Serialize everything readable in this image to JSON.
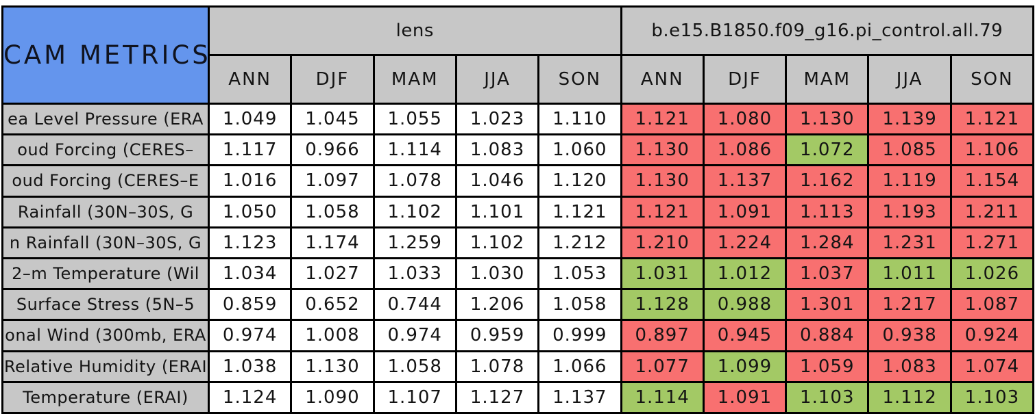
{
  "title": {
    "label": "CAM METRICS"
  },
  "groups": [
    {
      "label": "lens",
      "seasons": [
        "ANN",
        "DJF",
        "MAM",
        "JJA",
        "SON"
      ]
    },
    {
      "label": "b.e15.B1850.f09_g16.pi_control.all.79",
      "seasons": [
        "ANN",
        "DJF",
        "MAM",
        "JJA",
        "SON"
      ]
    }
  ],
  "colors": {
    "header_blue": "#6495ed",
    "header_gray": "#c7c7c7",
    "cell_white": "#ffffff",
    "cell_red": "#f87070",
    "cell_green": "#a3c965",
    "border": "#000000"
  },
  "rows": [
    {
      "label": "ea Level Pressure (ERA",
      "lens": [
        "1.049",
        "1.045",
        "1.055",
        "1.023",
        "1.110"
      ],
      "control": [
        {
          "v": "1.121",
          "flag": "red"
        },
        {
          "v": "1.080",
          "flag": "red"
        },
        {
          "v": "1.130",
          "flag": "red"
        },
        {
          "v": "1.139",
          "flag": "red"
        },
        {
          "v": "1.121",
          "flag": "red"
        }
      ]
    },
    {
      "label": "oud Forcing (CERES–",
      "lens": [
        "1.117",
        "0.966",
        "1.114",
        "1.083",
        "1.060"
      ],
      "control": [
        {
          "v": "1.130",
          "flag": "red"
        },
        {
          "v": "1.086",
          "flag": "red"
        },
        {
          "v": "1.072",
          "flag": "green"
        },
        {
          "v": "1.085",
          "flag": "red"
        },
        {
          "v": "1.106",
          "flag": "red"
        }
      ]
    },
    {
      "label": "oud Forcing (CERES–E",
      "lens": [
        "1.016",
        "1.097",
        "1.078",
        "1.046",
        "1.120"
      ],
      "control": [
        {
          "v": "1.130",
          "flag": "red"
        },
        {
          "v": "1.137",
          "flag": "red"
        },
        {
          "v": "1.162",
          "flag": "red"
        },
        {
          "v": "1.119",
          "flag": "red"
        },
        {
          "v": "1.154",
          "flag": "red"
        }
      ]
    },
    {
      "label": "Rainfall (30N–30S, G",
      "lens": [
        "1.050",
        "1.058",
        "1.102",
        "1.101",
        "1.121"
      ],
      "control": [
        {
          "v": "1.121",
          "flag": "red"
        },
        {
          "v": "1.091",
          "flag": "red"
        },
        {
          "v": "1.113",
          "flag": "red"
        },
        {
          "v": "1.193",
          "flag": "red"
        },
        {
          "v": "1.211",
          "flag": "red"
        }
      ]
    },
    {
      "label": "n Rainfall (30N–30S, G",
      "lens": [
        "1.123",
        "1.174",
        "1.259",
        "1.102",
        "1.212"
      ],
      "control": [
        {
          "v": "1.210",
          "flag": "red"
        },
        {
          "v": "1.224",
          "flag": "red"
        },
        {
          "v": "1.284",
          "flag": "red"
        },
        {
          "v": "1.231",
          "flag": "red"
        },
        {
          "v": "1.271",
          "flag": "red"
        }
      ]
    },
    {
      "label": "2–m Temperature (Wil",
      "lens": [
        "1.034",
        "1.027",
        "1.033",
        "1.030",
        "1.053"
      ],
      "control": [
        {
          "v": "1.031",
          "flag": "green"
        },
        {
          "v": "1.012",
          "flag": "green"
        },
        {
          "v": "1.037",
          "flag": "red"
        },
        {
          "v": "1.011",
          "flag": "green"
        },
        {
          "v": "1.026",
          "flag": "green"
        }
      ]
    },
    {
      "label": "Surface Stress (5N–5",
      "lens": [
        "0.859",
        "0.652",
        "0.744",
        "1.206",
        "1.058"
      ],
      "control": [
        {
          "v": "1.128",
          "flag": "green"
        },
        {
          "v": "0.988",
          "flag": "green"
        },
        {
          "v": "1.301",
          "flag": "red"
        },
        {
          "v": "1.217",
          "flag": "red"
        },
        {
          "v": "1.087",
          "flag": "red"
        }
      ]
    },
    {
      "label": "onal Wind (300mb, ERA",
      "lens": [
        "0.974",
        "1.008",
        "0.974",
        "0.959",
        "0.999"
      ],
      "control": [
        {
          "v": "0.897",
          "flag": "red"
        },
        {
          "v": "0.945",
          "flag": "red"
        },
        {
          "v": "0.884",
          "flag": "red"
        },
        {
          "v": "0.938",
          "flag": "red"
        },
        {
          "v": "0.924",
          "flag": "red"
        }
      ]
    },
    {
      "label": "Relative Humidity (ERAI",
      "lens": [
        "1.038",
        "1.130",
        "1.058",
        "1.078",
        "1.066"
      ],
      "control": [
        {
          "v": "1.077",
          "flag": "red"
        },
        {
          "v": "1.099",
          "flag": "green"
        },
        {
          "v": "1.059",
          "flag": "red"
        },
        {
          "v": "1.083",
          "flag": "red"
        },
        {
          "v": "1.074",
          "flag": "red"
        }
      ]
    },
    {
      "label": "Temperature (ERAI)",
      "lens": [
        "1.124",
        "1.090",
        "1.107",
        "1.127",
        "1.137"
      ],
      "control": [
        {
          "v": "1.114",
          "flag": "green"
        },
        {
          "v": "1.091",
          "flag": "red"
        },
        {
          "v": "1.103",
          "flag": "green"
        },
        {
          "v": "1.112",
          "flag": "green"
        },
        {
          "v": "1.103",
          "flag": "green"
        }
      ]
    }
  ]
}
